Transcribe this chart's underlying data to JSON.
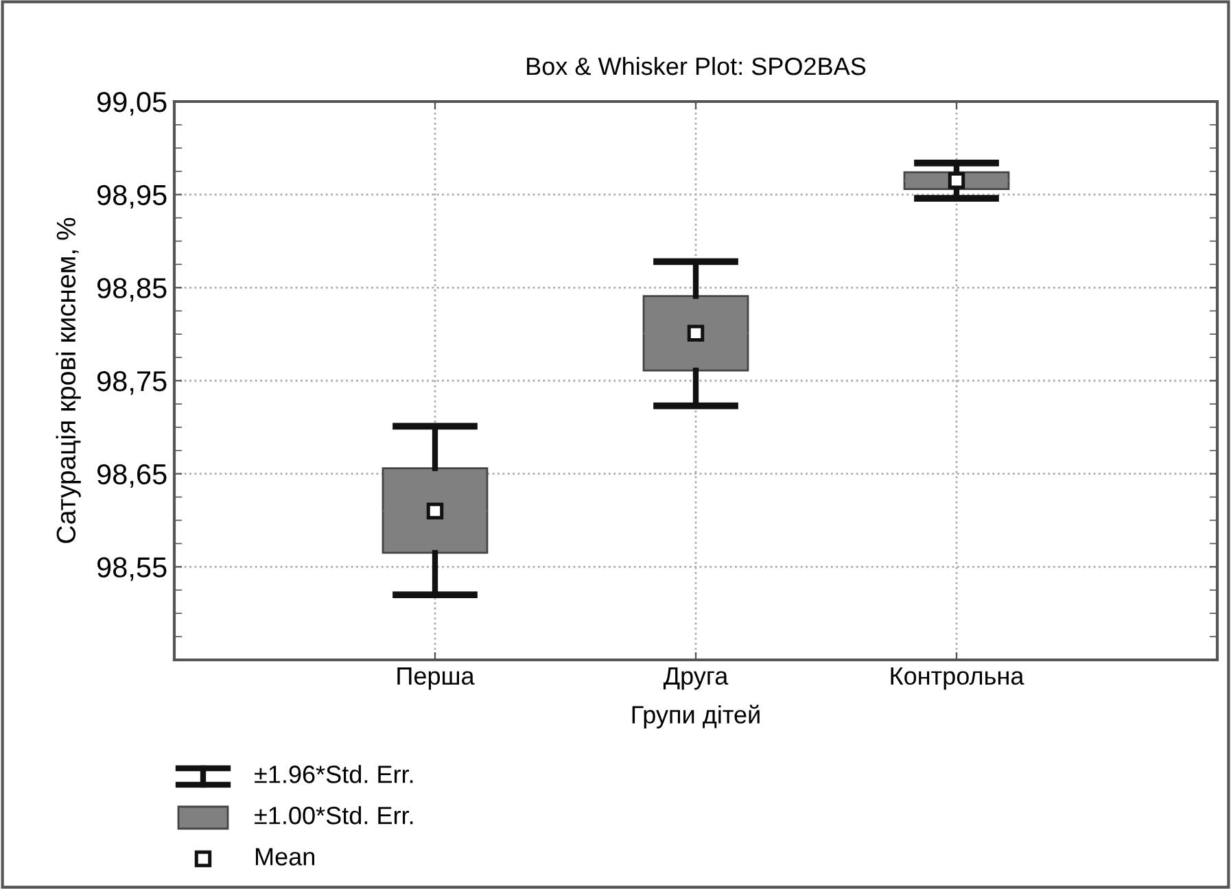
{
  "chart_data": {
    "type": "box",
    "title": "Box & Whisker Plot: SPO2BAS",
    "xlabel": "Групи дітей",
    "ylabel": "Сатурація крові киснем, %",
    "categories": [
      "Перша",
      "Друга",
      "Контрольна"
    ],
    "boxes": [
      {
        "low": 98.52,
        "q1": 98.565,
        "median": 98.61,
        "mean": 98.61,
        "q3": 98.656,
        "high": 98.701
      },
      {
        "low": 98.723,
        "q1": 98.761,
        "median": 98.801,
        "mean": 98.801,
        "q3": 98.841,
        "high": 98.878
      },
      {
        "low": 98.946,
        "q1": 98.956,
        "median": 98.965,
        "mean": 98.965,
        "q3": 98.974,
        "high": 98.984
      }
    ],
    "color": "#808080",
    "ylim": [
      98.45,
      99.05
    ],
    "yticks": [
      {
        "value": 98.55,
        "label": "98,55"
      },
      {
        "value": 98.65,
        "label": "98,65"
      },
      {
        "value": 98.75,
        "label": "98,75"
      },
      {
        "value": 98.85,
        "label": "98,85"
      },
      {
        "value": 98.95,
        "label": "98,95"
      },
      {
        "value": 99.05,
        "label": "99,05"
      }
    ],
    "grid": true,
    "annotations": [
      "±1.96*Std. Err.",
      "±1.00*Std. Err.",
      "Mean"
    ]
  }
}
